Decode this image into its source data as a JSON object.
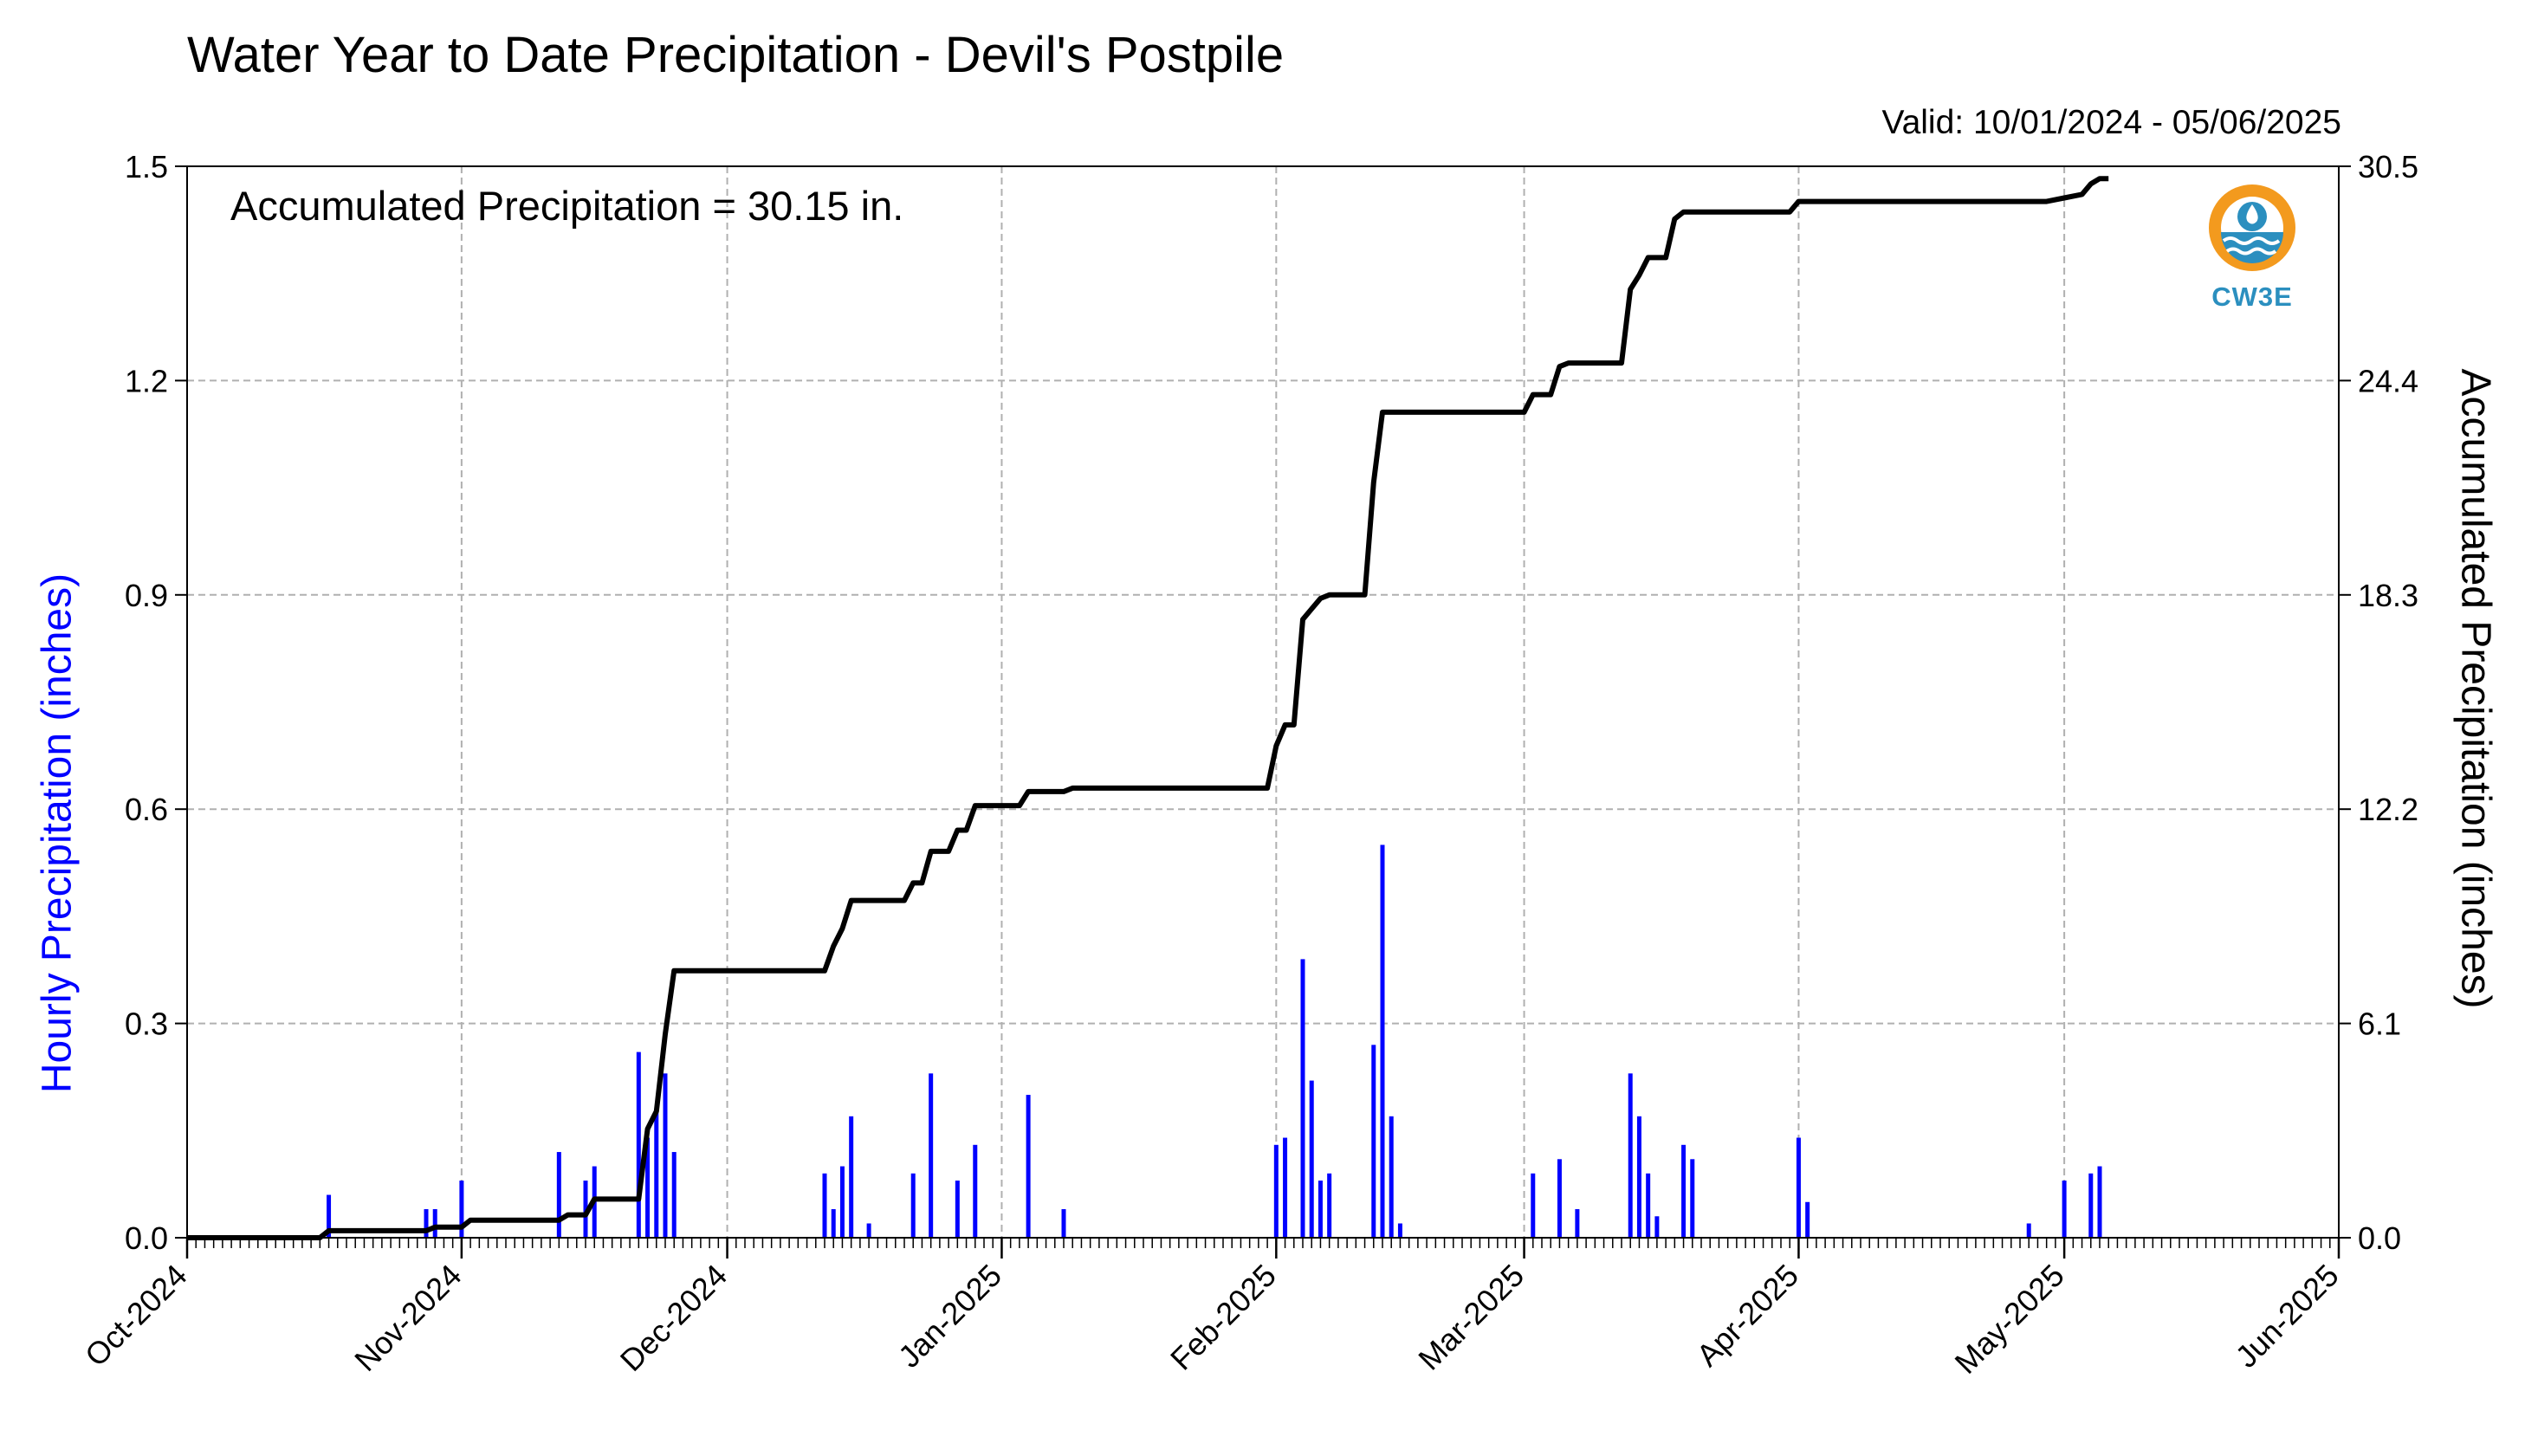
{
  "chart_data": {
    "type": "bar",
    "title": "Water Year to Date Precipitation - Devil's Postpile",
    "subtitle": "Valid: 10/01/2024 - 05/06/2025",
    "annotation": "Accumulated Precipitation = 30.15 in.",
    "ylabel_left": "Hourly Precipitation (inches)",
    "ylabel_right": "Accumulated Precipitation (inches)",
    "logo_text": "CW3E",
    "x_ticks": [
      "Oct-2024",
      "Nov-2024",
      "Dec-2024",
      "Jan-2025",
      "Feb-2025",
      "Mar-2025",
      "Apr-2025",
      "May-2025",
      "Jun-2025"
    ],
    "xlim": [
      "2024-10-01",
      "2025-06-01"
    ],
    "ylim_left": [
      0,
      1.5
    ],
    "ylim_right": [
      0,
      30.5
    ],
    "y_ticks_left": [
      "0.0",
      "0.3",
      "0.6",
      "0.9",
      "1.2",
      "1.5"
    ],
    "y_ticks_right": [
      "0.0",
      "6.1",
      "12.2",
      "18.3",
      "24.4",
      "30.5"
    ],
    "grid": true,
    "colors": {
      "hourly": "#0000ff",
      "accumulated": "#000000",
      "grid": "#b0b0b0"
    },
    "series": [
      {
        "axis": "left",
        "type": "bar",
        "points": [
          [
            "2024-10-17",
            0.06
          ],
          [
            "2024-10-28",
            0.04
          ],
          [
            "2024-10-29",
            0.04
          ],
          [
            "2024-11-01",
            0.08
          ],
          [
            "2024-11-12",
            0.12
          ],
          [
            "2024-11-15",
            0.08
          ],
          [
            "2024-11-16",
            0.1
          ],
          [
            "2024-11-21",
            0.26
          ],
          [
            "2024-11-22",
            0.14
          ],
          [
            "2024-11-23",
            0.18
          ],
          [
            "2024-11-24",
            0.23
          ],
          [
            "2024-11-25",
            0.12
          ],
          [
            "2024-12-12",
            0.09
          ],
          [
            "2024-12-13",
            0.04
          ],
          [
            "2024-12-14",
            0.1
          ],
          [
            "2024-12-15",
            0.17
          ],
          [
            "2024-12-17",
            0.02
          ],
          [
            "2024-12-22",
            0.09
          ],
          [
            "2024-12-24",
            0.23
          ],
          [
            "2024-12-27",
            0.08
          ],
          [
            "2024-12-29",
            0.13
          ],
          [
            "2025-01-04",
            0.2
          ],
          [
            "2025-01-08",
            0.04
          ],
          [
            "2025-02-01",
            0.13
          ],
          [
            "2025-02-02",
            0.14
          ],
          [
            "2025-02-04",
            0.39
          ],
          [
            "2025-02-05",
            0.22
          ],
          [
            "2025-02-06",
            0.08
          ],
          [
            "2025-02-07",
            0.09
          ],
          [
            "2025-02-12",
            0.27
          ],
          [
            "2025-02-13",
            0.55
          ],
          [
            "2025-02-14",
            0.17
          ],
          [
            "2025-02-15",
            0.02
          ],
          [
            "2025-03-02",
            0.09
          ],
          [
            "2025-03-05",
            0.11
          ],
          [
            "2025-03-07",
            0.04
          ],
          [
            "2025-03-13",
            0.23
          ],
          [
            "2025-03-14",
            0.17
          ],
          [
            "2025-03-15",
            0.09
          ],
          [
            "2025-03-16",
            0.03
          ],
          [
            "2025-03-19",
            0.13
          ],
          [
            "2025-03-20",
            0.11
          ],
          [
            "2025-04-01",
            0.14
          ],
          [
            "2025-04-02",
            0.05
          ],
          [
            "2025-04-27",
            0.02
          ],
          [
            "2025-05-01",
            0.08
          ],
          [
            "2025-05-04",
            0.09
          ],
          [
            "2025-05-05",
            0.1
          ]
        ]
      },
      {
        "axis": "right",
        "type": "line",
        "points": [
          [
            "2024-10-01",
            0.0
          ],
          [
            "2024-10-16",
            0.0
          ],
          [
            "2024-10-17",
            0.2
          ],
          [
            "2024-10-28",
            0.2
          ],
          [
            "2024-10-29",
            0.3
          ],
          [
            "2024-11-01",
            0.3
          ],
          [
            "2024-11-02",
            0.5
          ],
          [
            "2024-11-12",
            0.5
          ],
          [
            "2024-11-13",
            0.65
          ],
          [
            "2024-11-15",
            0.65
          ],
          [
            "2024-11-16",
            1.1
          ],
          [
            "2024-11-21",
            1.1
          ],
          [
            "2024-11-22",
            3.1
          ],
          [
            "2024-11-23",
            3.6
          ],
          [
            "2024-11-24",
            5.8
          ],
          [
            "2024-11-25",
            7.6
          ],
          [
            "2024-12-12",
            7.6
          ],
          [
            "2024-12-13",
            8.3
          ],
          [
            "2024-12-14",
            8.8
          ],
          [
            "2024-12-15",
            9.6
          ],
          [
            "2024-12-21",
            9.6
          ],
          [
            "2024-12-22",
            10.1
          ],
          [
            "2024-12-23",
            10.1
          ],
          [
            "2024-12-24",
            11.0
          ],
          [
            "2024-12-26",
            11.0
          ],
          [
            "2024-12-27",
            11.6
          ],
          [
            "2024-12-28",
            11.6
          ],
          [
            "2024-12-29",
            12.3
          ],
          [
            "2025-01-03",
            12.3
          ],
          [
            "2025-01-04",
            12.7
          ],
          [
            "2025-01-08",
            12.7
          ],
          [
            "2025-01-09",
            12.8
          ],
          [
            "2025-01-31",
            12.8
          ],
          [
            "2025-02-01",
            14.0
          ],
          [
            "2025-02-02",
            14.6
          ],
          [
            "2025-02-03",
            14.6
          ],
          [
            "2025-02-04",
            17.6
          ],
          [
            "2025-02-05",
            17.9
          ],
          [
            "2025-02-06",
            18.2
          ],
          [
            "2025-02-07",
            18.3
          ],
          [
            "2025-02-11",
            18.3
          ],
          [
            "2025-02-12",
            21.5
          ],
          [
            "2025-02-13",
            23.5
          ],
          [
            "2025-03-01",
            23.5
          ],
          [
            "2025-03-02",
            24.0
          ],
          [
            "2025-03-04",
            24.0
          ],
          [
            "2025-03-05",
            24.8
          ],
          [
            "2025-03-06",
            24.9
          ],
          [
            "2025-03-12",
            24.9
          ],
          [
            "2025-03-13",
            27.0
          ],
          [
            "2025-03-14",
            27.4
          ],
          [
            "2025-03-15",
            27.9
          ],
          [
            "2025-03-17",
            27.9
          ],
          [
            "2025-03-18",
            29.0
          ],
          [
            "2025-03-19",
            29.2
          ],
          [
            "2025-03-31",
            29.2
          ],
          [
            "2025-04-01",
            29.5
          ],
          [
            "2025-04-29",
            29.5
          ],
          [
            "2025-05-01",
            29.6
          ],
          [
            "2025-05-03",
            29.7
          ],
          [
            "2025-05-04",
            30.0
          ],
          [
            "2025-05-05",
            30.15
          ],
          [
            "2025-05-06",
            30.15
          ]
        ]
      }
    ]
  }
}
